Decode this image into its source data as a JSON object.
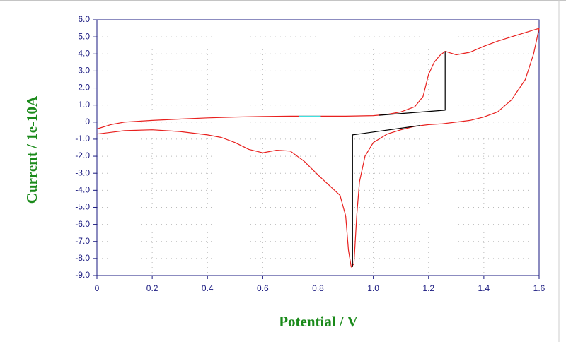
{
  "chart_data": {
    "type": "line",
    "xlabel": "Potential / V",
    "ylabel": "Current / 1e-10A",
    "xlim": [
      0,
      1.6
    ],
    "ylim": [
      -9,
      6
    ],
    "xticks": [
      0,
      0.2,
      0.4,
      0.6,
      0.8,
      {
        "value": 1,
        "label": "1.0"
      },
      1.2,
      1.4,
      1.6
    ],
    "yticks": [
      {
        "value": 6,
        "label": "6.0"
      },
      {
        "value": 5,
        "label": "5.0"
      },
      {
        "value": 4,
        "label": "4.0"
      },
      {
        "value": 3,
        "label": "3.0"
      },
      {
        "value": 2,
        "label": "2.0"
      },
      {
        "value": 1,
        "label": "1.0"
      },
      0,
      {
        "value": -1,
        "label": "-1.0"
      },
      {
        "value": -2,
        "label": "-2.0"
      },
      {
        "value": -3,
        "label": "-3.0"
      },
      {
        "value": -4,
        "label": "-4.0"
      },
      {
        "value": -5,
        "label": "-5.0"
      },
      {
        "value": -6,
        "label": "-6.0"
      },
      {
        "value": -7,
        "label": "-7.0"
      },
      {
        "value": -8,
        "label": "-8.0"
      },
      {
        "value": -9,
        "label": "-9.0"
      }
    ],
    "grid": true,
    "series": [
      {
        "color": "#e8201e",
        "x": [
          0,
          0.05,
          0.1,
          0.2,
          0.3,
          0.4,
          0.5,
          0.6,
          0.7,
          0.8,
          0.9,
          1.0,
          1.05,
          1.1,
          1.15,
          1.18,
          1.2,
          1.22,
          1.24,
          1.26,
          1.28,
          1.3,
          1.35,
          1.4,
          1.45,
          1.5,
          1.55,
          1.6
        ],
        "values": [
          -0.4,
          -0.15,
          0,
          0.1,
          0.18,
          0.25,
          0.3,
          0.33,
          0.35,
          0.35,
          0.35,
          0.38,
          0.45,
          0.6,
          0.9,
          1.5,
          2.8,
          3.5,
          3.9,
          4.15,
          4.05,
          3.95,
          4.1,
          4.45,
          4.75,
          5.0,
          5.25,
          5.5
        ]
      },
      {
        "color": "#e8201e",
        "x": [
          1.6,
          1.58,
          1.55,
          1.5,
          1.45,
          1.4,
          1.35,
          1.3,
          1.25,
          1.2,
          1.15,
          1.1,
          1.05,
          1.0,
          0.97,
          0.95,
          0.94,
          0.93,
          0.92,
          0.91,
          0.9,
          0.88,
          0.86,
          0.84,
          0.82,
          0.8,
          0.75,
          0.7,
          0.65,
          0.6,
          0.55,
          0.5,
          0.45,
          0.4,
          0.3,
          0.2,
          0.1,
          0.05,
          0
        ],
        "values": [
          5.5,
          4.0,
          2.5,
          1.3,
          0.6,
          0.3,
          0.1,
          0,
          -0.1,
          -0.15,
          -0.25,
          -0.45,
          -0.7,
          -1.2,
          -2.0,
          -3.5,
          -5.5,
          -8.3,
          -8.5,
          -7.5,
          -5.5,
          -4.3,
          -4.0,
          -3.7,
          -3.4,
          -3.1,
          -2.3,
          -1.7,
          -1.65,
          -1.8,
          -1.6,
          -1.2,
          -0.9,
          -0.75,
          -0.55,
          -0.45,
          -0.5,
          -0.6,
          -0.7
        ]
      },
      {
        "color": "#000000",
        "x": [
          1.02,
          1.26,
          1.26
        ],
        "values": [
          0.4,
          0.7,
          4.15
        ]
      },
      {
        "color": "#000000",
        "x": [
          1.17,
          0.925,
          0.925
        ],
        "values": [
          -0.2,
          -0.75,
          -8.5
        ]
      },
      {
        "color": "#40e0e0",
        "x": [
          0.73,
          0.81
        ],
        "values": [
          0.35,
          0.35
        ]
      }
    ]
  }
}
